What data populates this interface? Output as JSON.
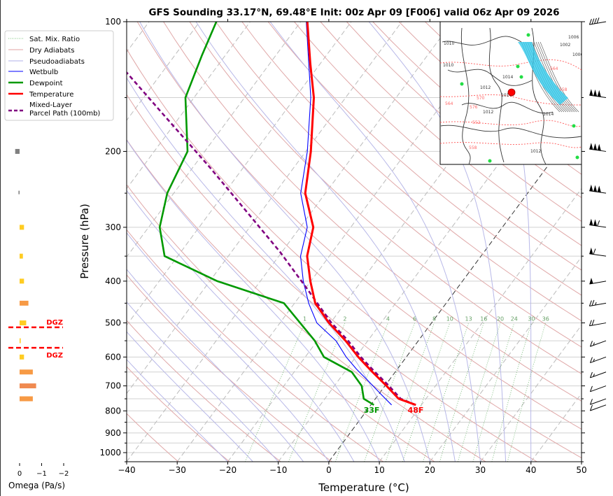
{
  "chart_data": {
    "type": "line",
    "title": "GFS Sounding 33.17°N, 69.48°E Init: 00z Apr 09 [F006] valid 06z Apr 09 2026",
    "xlabel": "Temperature (°C)",
    "ylabel": "Pressure (hPa)",
    "xlim": [
      -40,
      50
    ],
    "ylim": [
      1050,
      100
    ],
    "y_scale": "log",
    "grid": true,
    "x_ticks": [
      "-40",
      "-30",
      "-20",
      "-10",
      "0",
      "10",
      "20",
      "30",
      "40",
      "50"
    ],
    "y_ticks": [
      "100",
      "200",
      "300",
      "400",
      "500",
      "600",
      "700",
      "800",
      "900",
      "1000"
    ],
    "legend_position": "top-left outside",
    "legend": [
      "Sat. Mix. Ratio",
      "Dry Adiabats",
      "Pseudoadiabats",
      "Wetbulb",
      "Dewpoint",
      "Temperature",
      "Mixed-Layer\nParcel Path (100mb)"
    ],
    "mixing_ratio_labels": [
      "1",
      "2",
      "4",
      "6",
      "8",
      "10",
      "13",
      "16",
      "20",
      "24",
      "30",
      "36"
    ],
    "series": [
      {
        "name": "Temperature",
        "color": "#ff0000",
        "pressure": [
          775,
          750,
          700,
          650,
          600,
          550,
          500,
          450,
          400,
          350,
          300,
          250,
          200,
          150,
          125,
          100
        ],
        "temperature": [
          8.9,
          4.6,
          0.3,
          -4.5,
          -9.5,
          -14.4,
          -20.3,
          -25.9,
          -30.1,
          -34.4,
          -37.4,
          -44.0,
          -49.0,
          -56.3,
          -62.0,
          -68.7
        ]
      },
      {
        "name": "Dewpoint",
        "color": "#009900",
        "pressure": [
          775,
          750,
          700,
          650,
          600,
          550,
          450,
          400,
          350,
          300,
          250,
          200,
          150,
          120,
          100
        ],
        "temperature": [
          0.6,
          -2.3,
          -4.6,
          -8.6,
          -16.3,
          -20.5,
          -32.1,
          -48.5,
          -62.6,
          -67.8,
          -71.3,
          -73.4,
          -81.7,
          -84.6,
          -86.7
        ]
      },
      {
        "name": "Wetbulb",
        "color": "#0000ff",
        "pressure": [
          775,
          735,
          680,
          640,
          600,
          550,
          500,
          450,
          400,
          350,
          300,
          250,
          200,
          150,
          100
        ],
        "temperature": [
          4.1,
          0.7,
          -4.2,
          -8.1,
          -11.9,
          -16.3,
          -22.7,
          -27.2,
          -31.5,
          -35.7,
          -38.6,
          -44.9,
          -49.7,
          -56.9,
          -68.9
        ]
      },
      {
        "name": "Mixed-Layer Parcel Path (100mb)",
        "color": "#800080",
        "pressure": [
          775,
          750,
          700,
          650,
          600,
          550,
          500,
          450,
          420,
          342,
          273,
          218,
          162,
          131
        ],
        "temperature": [
          8.9,
          5.0,
          0.8,
          -4.0,
          -9.0,
          -13.9,
          -19.8,
          -25.5,
          -29.2,
          -40.4,
          -53.5,
          -66.6,
          -84.4,
          -97.1
        ]
      }
    ],
    "surface_labels": [
      {
        "text": "33F",
        "color": "#009900"
      },
      {
        "text": "48F",
        "color": "#ff0000"
      }
    ],
    "omega": {
      "xlabel": "Omega (Pa/s)",
      "x_ticks": [
        "0",
        "−1",
        "−2"
      ],
      "pressure": [
        200,
        250,
        300,
        350,
        400,
        450,
        500,
        550,
        600,
        650,
        700,
        750
      ],
      "values": [
        0.2,
        0.05,
        -0.2,
        -0.15,
        -0.2,
        -0.4,
        -0.3,
        -0.05,
        -0.2,
        -0.6,
        -0.75,
        -0.6
      ]
    },
    "dgz": {
      "label": "DGZ",
      "top_pressure": 512,
      "bottom_pressure": 571,
      "color": "#ff0000"
    },
    "wind_barbs_kt": {
      "pressure": [
        100,
        150,
        200,
        250,
        300,
        350,
        400,
        450,
        500,
        550,
        600,
        650,
        700,
        750,
        775
      ],
      "speed": [
        40,
        150,
        150,
        150,
        110,
        60,
        50,
        25,
        20,
        15,
        15,
        15,
        10,
        10,
        10
      ]
    },
    "map_inset": {
      "labels": [
        "1010",
        "1014",
        "1012",
        "1010",
        "1012",
        "1014",
        "1000",
        "1002",
        "1006",
        "1014",
        "1012",
        "558",
        "564",
        "570",
        "576",
        "552",
        "558",
        "564"
      ]
    }
  }
}
